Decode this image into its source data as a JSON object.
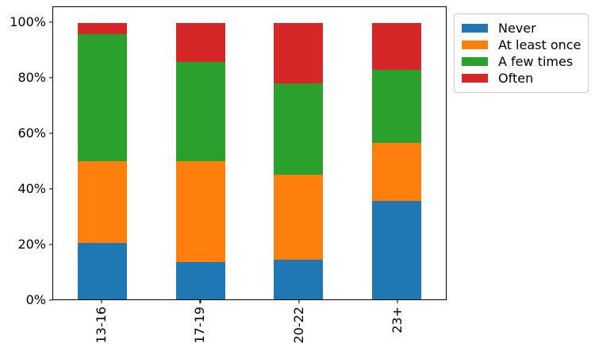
{
  "chart_data": {
    "type": "bar",
    "stacked": true,
    "percent_stacked": true,
    "title": "",
    "xlabel": "",
    "ylabel": "",
    "categories": [
      "13-16",
      "17-19",
      "20-22",
      "23+"
    ],
    "series": [
      {
        "name": "Never",
        "color": "#1f77b4",
        "values": [
          20.5,
          13.5,
          14.5,
          35.5
        ]
      },
      {
        "name": "At least once",
        "color": "#ff7f0e",
        "values": [
          29.5,
          36.5,
          30.5,
          21.0
        ]
      },
      {
        "name": "A few times",
        "color": "#2ca02c",
        "values": [
          46.0,
          36.0,
          33.0,
          26.5
        ]
      },
      {
        "name": "Often",
        "color": "#d62728",
        "values": [
          4.0,
          14.0,
          22.0,
          17.0
        ]
      }
    ],
    "y_ticks": [
      {
        "value": 0,
        "label": "0%"
      },
      {
        "value": 20,
        "label": "20%"
      },
      {
        "value": 40,
        "label": "40%"
      },
      {
        "value": 60,
        "label": "60%"
      },
      {
        "value": 80,
        "label": "80%"
      },
      {
        "value": 100,
        "label": "100%"
      }
    ],
    "ylim": [
      0,
      105.7
    ],
    "grid": false,
    "x_labels_rotation_deg": 90,
    "legend": {
      "position": "outside-top-right",
      "entries": [
        "Never",
        "At least once",
        "A few times",
        "Often"
      ]
    }
  },
  "colors": {
    "frame": "#000000",
    "legend_border": "#cccccc",
    "background": "#ffffff",
    "text": "#000000"
  }
}
